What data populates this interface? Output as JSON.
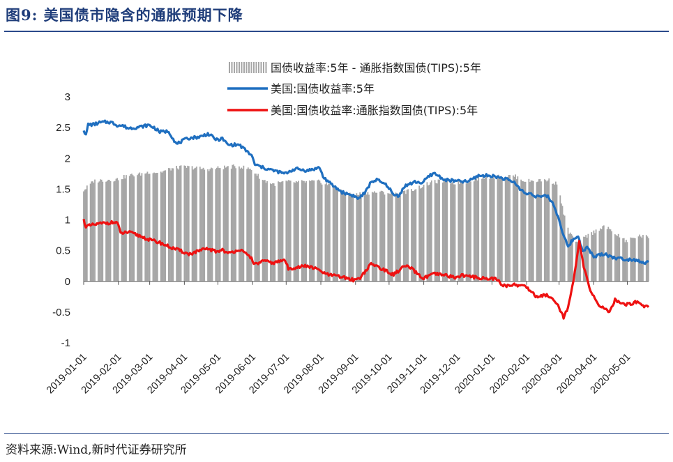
{
  "figure": {
    "title": "图9:   美国债市隐含的通胀预期下降",
    "source": "资料来源:Wind,新时代证券研究所"
  },
  "chart_data": {
    "type": "line",
    "title": "图9:   美国债市隐含的通胀预期下降",
    "xlabel": "",
    "ylabel": "",
    "ylim": [
      -1,
      3
    ],
    "yticks": [
      "3",
      "2.5",
      "2",
      "1.5",
      "1",
      "0.5",
      "0",
      "-0.5",
      "-1"
    ],
    "x_ticks": [
      "2019-01-01",
      "2019-02-01",
      "2019-03-01",
      "2019-04-01",
      "2019-05-01",
      "2019-06-01",
      "2019-07-01",
      "2019-08-01",
      "2019-09-01",
      "2019-10-01",
      "2019-11-01",
      "2019-12-01",
      "2020-01-01",
      "2020-02-01",
      "2020-03-01",
      "2020-04-01",
      "2020-05-01"
    ],
    "x_start": "2019-01-01",
    "x_end": "2020-05-20",
    "grid": false,
    "legend_position": "top-right",
    "colors": {
      "spread": "#a6a6a6",
      "nominal": "#1f6fc0",
      "tips": "#ee1111"
    },
    "series": [
      {
        "name": "国债收益率:5年 - 通胀指数国债(TIPS):5年",
        "kind": "bar",
        "points": [
          [
            "2019-01-01",
            1.48
          ],
          [
            "2019-01-10",
            1.63
          ],
          [
            "2019-01-20",
            1.65
          ],
          [
            "2019-01-31",
            1.66
          ],
          [
            "2019-02-10",
            1.72
          ],
          [
            "2019-02-20",
            1.74
          ],
          [
            "2019-03-01",
            1.78
          ],
          [
            "2019-03-10",
            1.77
          ],
          [
            "2019-03-20",
            1.83
          ],
          [
            "2019-03-31",
            1.86
          ],
          [
            "2019-04-10",
            1.85
          ],
          [
            "2019-04-20",
            1.82
          ],
          [
            "2019-04-30",
            1.84
          ],
          [
            "2019-05-10",
            1.86
          ],
          [
            "2019-05-20",
            1.87
          ],
          [
            "2019-05-31",
            1.82
          ],
          [
            "2019-06-10",
            1.65
          ],
          [
            "2019-06-20",
            1.58
          ],
          [
            "2019-06-30",
            1.62
          ],
          [
            "2019-07-10",
            1.61
          ],
          [
            "2019-07-20",
            1.62
          ],
          [
            "2019-07-31",
            1.62
          ],
          [
            "2019-08-10",
            1.56
          ],
          [
            "2019-08-20",
            1.45
          ],
          [
            "2019-08-31",
            1.4
          ],
          [
            "2019-09-10",
            1.44
          ],
          [
            "2019-09-20",
            1.45
          ],
          [
            "2019-09-30",
            1.44
          ],
          [
            "2019-10-10",
            1.42
          ],
          [
            "2019-10-20",
            1.48
          ],
          [
            "2019-10-31",
            1.55
          ],
          [
            "2019-11-10",
            1.62
          ],
          [
            "2019-11-20",
            1.63
          ],
          [
            "2019-11-30",
            1.6
          ],
          [
            "2019-12-10",
            1.62
          ],
          [
            "2019-12-20",
            1.68
          ],
          [
            "2019-12-31",
            1.7
          ],
          [
            "2020-01-10",
            1.7
          ],
          [
            "2020-01-20",
            1.72
          ],
          [
            "2020-01-31",
            1.63
          ],
          [
            "2020-02-10",
            1.64
          ],
          [
            "2020-02-20",
            1.65
          ],
          [
            "2020-02-29",
            1.58
          ],
          [
            "2020-03-05",
            1.1
          ],
          [
            "2020-03-10",
            0.8
          ],
          [
            "2020-03-18",
            0.6
          ],
          [
            "2020-03-25",
            0.73
          ],
          [
            "2020-04-01",
            0.8
          ],
          [
            "2020-04-10",
            0.9
          ],
          [
            "2020-04-20",
            0.78
          ],
          [
            "2020-04-30",
            0.65
          ],
          [
            "2020-05-10",
            0.74
          ],
          [
            "2020-05-20",
            0.72
          ]
        ]
      },
      {
        "name": "美国:国债收益率:5年",
        "kind": "line",
        "points": [
          [
            "2019-01-01",
            2.47
          ],
          [
            "2019-01-03",
            2.37
          ],
          [
            "2019-01-05",
            2.55
          ],
          [
            "2019-01-10",
            2.55
          ],
          [
            "2019-01-15",
            2.58
          ],
          [
            "2019-01-20",
            2.59
          ],
          [
            "2019-01-25",
            2.59
          ],
          [
            "2019-01-31",
            2.54
          ],
          [
            "2019-02-05",
            2.53
          ],
          [
            "2019-02-10",
            2.49
          ],
          [
            "2019-02-20",
            2.51
          ],
          [
            "2019-02-28",
            2.54
          ],
          [
            "2019-03-05",
            2.5
          ],
          [
            "2019-03-10",
            2.43
          ],
          [
            "2019-03-18",
            2.44
          ],
          [
            "2019-03-25",
            2.23
          ],
          [
            "2019-03-31",
            2.29
          ],
          [
            "2019-04-05",
            2.33
          ],
          [
            "2019-04-15",
            2.35
          ],
          [
            "2019-04-22",
            2.4
          ],
          [
            "2019-04-30",
            2.3
          ],
          [
            "2019-05-05",
            2.32
          ],
          [
            "2019-05-10",
            2.22
          ],
          [
            "2019-05-20",
            2.22
          ],
          [
            "2019-05-31",
            2.05
          ],
          [
            "2019-06-03",
            1.9
          ],
          [
            "2019-06-10",
            1.85
          ],
          [
            "2019-06-20",
            1.8
          ],
          [
            "2019-06-30",
            1.75
          ],
          [
            "2019-07-05",
            1.8
          ],
          [
            "2019-07-10",
            1.83
          ],
          [
            "2019-07-20",
            1.8
          ],
          [
            "2019-07-31",
            1.85
          ],
          [
            "2019-08-03",
            1.7
          ],
          [
            "2019-08-10",
            1.58
          ],
          [
            "2019-08-20",
            1.45
          ],
          [
            "2019-08-31",
            1.39
          ],
          [
            "2019-09-03",
            1.34
          ],
          [
            "2019-09-10",
            1.45
          ],
          [
            "2019-09-15",
            1.62
          ],
          [
            "2019-09-20",
            1.65
          ],
          [
            "2019-09-30",
            1.55
          ],
          [
            "2019-10-05",
            1.4
          ],
          [
            "2019-10-10",
            1.4
          ],
          [
            "2019-10-15",
            1.55
          ],
          [
            "2019-10-25",
            1.62
          ],
          [
            "2019-10-31",
            1.6
          ],
          [
            "2019-11-05",
            1.7
          ],
          [
            "2019-11-10",
            1.76
          ],
          [
            "2019-11-20",
            1.65
          ],
          [
            "2019-11-30",
            1.63
          ],
          [
            "2019-12-10",
            1.62
          ],
          [
            "2019-12-20",
            1.72
          ],
          [
            "2019-12-31",
            1.72
          ],
          [
            "2020-01-05",
            1.7
          ],
          [
            "2020-01-10",
            1.68
          ],
          [
            "2020-01-20",
            1.62
          ],
          [
            "2020-01-31",
            1.42
          ],
          [
            "2020-02-05",
            1.43
          ],
          [
            "2020-02-10",
            1.38
          ],
          [
            "2020-02-20",
            1.38
          ],
          [
            "2020-02-25",
            1.25
          ],
          [
            "2020-03-01",
            1.0
          ],
          [
            "2020-03-05",
            0.75
          ],
          [
            "2020-03-09",
            0.55
          ],
          [
            "2020-03-12",
            0.65
          ],
          [
            "2020-03-18",
            0.74
          ],
          [
            "2020-03-22",
            0.5
          ],
          [
            "2020-03-26",
            0.55
          ],
          [
            "2020-04-01",
            0.4
          ],
          [
            "2020-04-10",
            0.45
          ],
          [
            "2020-04-20",
            0.38
          ],
          [
            "2020-04-30",
            0.36
          ],
          [
            "2020-05-10",
            0.35
          ],
          [
            "2020-05-15",
            0.3
          ],
          [
            "2020-05-20",
            0.31
          ]
        ]
      },
      {
        "name": "美国:国债收益率:通胀指数国债(TIPS):5年",
        "kind": "line",
        "points": [
          [
            "2019-01-01",
            1.0
          ],
          [
            "2019-01-03",
            0.89
          ],
          [
            "2019-01-10",
            0.92
          ],
          [
            "2019-01-20",
            0.95
          ],
          [
            "2019-01-31",
            0.96
          ],
          [
            "2019-02-03",
            0.78
          ],
          [
            "2019-02-10",
            0.8
          ],
          [
            "2019-02-20",
            0.74
          ],
          [
            "2019-02-28",
            0.68
          ],
          [
            "2019-03-10",
            0.63
          ],
          [
            "2019-03-20",
            0.55
          ],
          [
            "2019-03-31",
            0.48
          ],
          [
            "2019-04-05",
            0.44
          ],
          [
            "2019-04-15",
            0.5
          ],
          [
            "2019-04-22",
            0.53
          ],
          [
            "2019-04-30",
            0.48
          ],
          [
            "2019-05-05",
            0.52
          ],
          [
            "2019-05-10",
            0.45
          ],
          [
            "2019-05-20",
            0.52
          ],
          [
            "2019-05-31",
            0.38
          ],
          [
            "2019-06-03",
            0.27
          ],
          [
            "2019-06-10",
            0.33
          ],
          [
            "2019-06-20",
            0.3
          ],
          [
            "2019-06-30",
            0.35
          ],
          [
            "2019-07-03",
            0.2
          ],
          [
            "2019-07-10",
            0.23
          ],
          [
            "2019-07-20",
            0.25
          ],
          [
            "2019-07-31",
            0.18
          ],
          [
            "2019-08-05",
            0.12
          ],
          [
            "2019-08-10",
            0.1
          ],
          [
            "2019-08-20",
            0.07
          ],
          [
            "2019-08-31",
            0.02
          ],
          [
            "2019-09-05",
            0.06
          ],
          [
            "2019-09-15",
            0.28
          ],
          [
            "2019-09-20",
            0.25
          ],
          [
            "2019-09-30",
            0.15
          ],
          [
            "2019-10-05",
            0.11
          ],
          [
            "2019-10-15",
            0.25
          ],
          [
            "2019-10-20",
            0.22
          ],
          [
            "2019-10-31",
            0.05
          ],
          [
            "2019-11-05",
            0.08
          ],
          [
            "2019-11-10",
            0.12
          ],
          [
            "2019-11-20",
            0.1
          ],
          [
            "2019-11-30",
            0.06
          ],
          [
            "2019-12-05",
            0.1
          ],
          [
            "2019-12-15",
            0.07
          ],
          [
            "2019-12-25",
            0.05
          ],
          [
            "2019-12-31",
            0.04
          ],
          [
            "2020-01-05",
            0.05
          ],
          [
            "2020-01-10",
            -0.08
          ],
          [
            "2020-01-20",
            -0.05
          ],
          [
            "2020-01-31",
            -0.08
          ],
          [
            "2020-02-10",
            -0.25
          ],
          [
            "2020-02-20",
            -0.22
          ],
          [
            "2020-02-28",
            -0.35
          ],
          [
            "2020-03-05",
            -0.58
          ],
          [
            "2020-03-09",
            -0.42
          ],
          [
            "2020-03-14",
            0.0
          ],
          [
            "2020-03-19",
            0.65
          ],
          [
            "2020-03-23",
            0.23
          ],
          [
            "2020-03-28",
            -0.1
          ],
          [
            "2020-04-05",
            -0.38
          ],
          [
            "2020-04-15",
            -0.5
          ],
          [
            "2020-04-20",
            -0.3
          ],
          [
            "2020-04-30",
            -0.38
          ],
          [
            "2020-05-10",
            -0.33
          ],
          [
            "2020-05-15",
            -0.4
          ],
          [
            "2020-05-20",
            -0.4
          ]
        ]
      }
    ]
  }
}
